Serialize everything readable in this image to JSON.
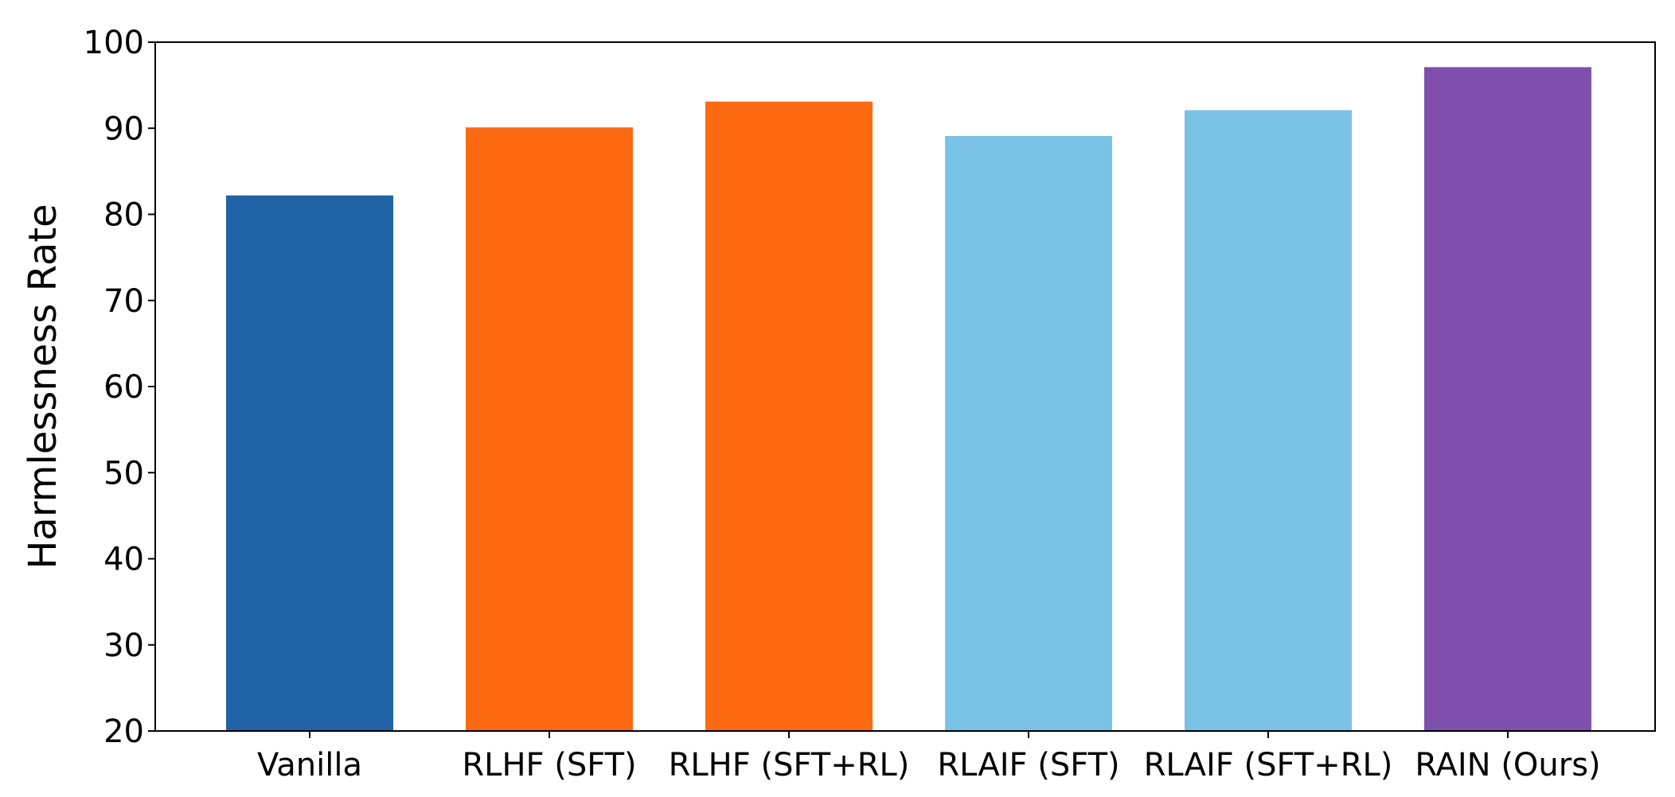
{
  "chart_data": {
    "type": "bar",
    "title": "",
    "xlabel": "",
    "ylabel": "Harmlessness Rate",
    "ylim": [
      20,
      100
    ],
    "yticks": [
      20,
      30,
      40,
      50,
      60,
      70,
      80,
      90,
      100
    ],
    "grid": false,
    "legend": "none",
    "categories": [
      "Vanilla",
      "RLHF (SFT)",
      "RLHF (SFT+RL)",
      "RLAIF (SFT)",
      "RLAIF (SFT+RL)",
      "RAIN (Ours)"
    ],
    "values": [
      82.2,
      90.1,
      93.1,
      89.1,
      92.1,
      97.1
    ],
    "colors": [
      "#1f63a6",
      "#fd6a12",
      "#fd6a12",
      "#7ac2e5",
      "#7ac2e5",
      "#7f4fae"
    ]
  }
}
